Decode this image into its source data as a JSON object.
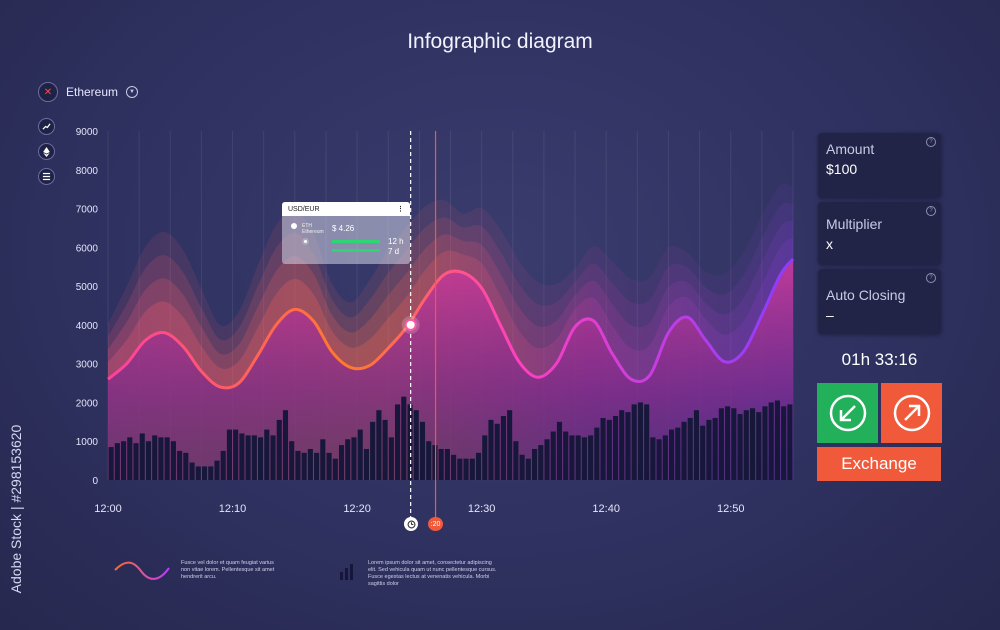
{
  "title": "Infographic diagram",
  "asset": {
    "name": "Ethereum",
    "close_icon": "close-x-icon",
    "dropdown_icon": "chevron-down-icon"
  },
  "side_icons": [
    "trend-line-icon",
    "ethereum-icon",
    "list-icon"
  ],
  "tooltip": {
    "pair": "USD/EUR",
    "menu_icon": "vertical-dots-icon",
    "coin": "ETH",
    "coin_name": "Ethereum",
    "price": "$ 4.26",
    "period1": "12 h",
    "period2": "7 d"
  },
  "markers": {
    "current_icon": "clock-icon",
    "red_label": ":20"
  },
  "panels": {
    "amount": {
      "label": "Amount",
      "value": "$100"
    },
    "multiplier": {
      "label": "Multiplier",
      "value": "x"
    },
    "auto_closing": {
      "label": "Auto Closing",
      "value": "–"
    }
  },
  "timer": "01h 33:16",
  "buttons": {
    "down_icon": "arrow-down-left-icon",
    "up_icon": "arrow-up-right-icon",
    "exchange": "Exchange"
  },
  "legend": {
    "line_text": "Fusce vel dolor et quam feugiat varius non vitae lorem. Pellentesque sit amet hendrerit arcu.",
    "bar_text": "Lorem ipsum dolor sit amet, consectetur adipiscing elit. Sed vehicula quam ut nunc pellentesque cursus. Fusce egestas lectus at venenatis vehicula. Morbi sagittis dolor"
  },
  "watermark": "Adobe Stock | #298153620",
  "colors": {
    "down_button": "#22b15a",
    "up_button": "#f05a3b",
    "exchange_button": "#f05a3b",
    "line_start": "#ff6a2a",
    "line_end": "#8a3cff"
  },
  "chart_data": {
    "type": "line",
    "ylim": [
      0,
      9000
    ],
    "yticks": [
      0,
      1000,
      2000,
      3000,
      4000,
      5000,
      6000,
      7000,
      8000,
      9000
    ],
    "xlim": [
      0,
      55
    ],
    "xtick_labels": [
      "12:00",
      "12:10",
      "12:20",
      "12:30",
      "12:40",
      "12:50"
    ],
    "xtick_values": [
      0,
      10,
      20,
      30,
      40,
      50
    ],
    "grid": true,
    "line": {
      "x": [
        0,
        1.5,
        3,
        4.5,
        6,
        7.5,
        9,
        10.5,
        12,
        13.5,
        15,
        16.5,
        18,
        19.5,
        21,
        22.5,
        24,
        25.5,
        27,
        28.5,
        30,
        31.5,
        33,
        34.5,
        36,
        37.5,
        39,
        40.5,
        42,
        43.5,
        45,
        46.5,
        48,
        49.5,
        51,
        52.5,
        54,
        55
      ],
      "y": [
        2600,
        3000,
        3600,
        3800,
        3450,
        2800,
        2400,
        2500,
        3200,
        4000,
        4400,
        4100,
        3300,
        2900,
        2950,
        3400,
        3950,
        4700,
        5300,
        5350,
        4950,
        4000,
        3050,
        2650,
        3000,
        3950,
        4100,
        3250,
        2600,
        2700,
        3800,
        4200,
        3600,
        3050,
        3300,
        4250,
        5300,
        5700
      ]
    },
    "bars": {
      "x": [
        0.25,
        0.75,
        1.25,
        1.75,
        2.25,
        2.75,
        3.25,
        3.75,
        4.25,
        4.75,
        5.25,
        5.75,
        6.25,
        6.75,
        7.25,
        7.75,
        8.25,
        8.75,
        9.25,
        9.75,
        10.25,
        10.75,
        11.25,
        11.75,
        12.25,
        12.75,
        13.25,
        13.75,
        14.25,
        14.75,
        15.25,
        15.75,
        16.25,
        16.75,
        17.25,
        17.75,
        18.25,
        18.75,
        19.25,
        19.75,
        20.25,
        20.75,
        21.25,
        21.75,
        22.25,
        22.75,
        23.25,
        23.75,
        24.25,
        24.75,
        25.25,
        25.75,
        26.25,
        26.75,
        27.25,
        27.75,
        28.25,
        28.75,
        29.25,
        29.75,
        30.25,
        30.75,
        31.25,
        31.75,
        32.25,
        32.75,
        33.25,
        33.75,
        34.25,
        34.75,
        35.25,
        35.75,
        36.25,
        36.75,
        37.25,
        37.75,
        38.25,
        38.75,
        39.25,
        39.75,
        40.25,
        40.75,
        41.25,
        41.75,
        42.25,
        42.75,
        43.25,
        43.75,
        44.25,
        44.75,
        45.25,
        45.75,
        46.25,
        46.75,
        47.25,
        47.75,
        48.25,
        48.75,
        49.25,
        49.75,
        50.25,
        50.75,
        51.25,
        51.75,
        52.25,
        52.75,
        53.25,
        53.75,
        54.25,
        54.75
      ],
      "y": [
        850,
        950,
        1000,
        1100,
        950,
        1200,
        1000,
        1150,
        1100,
        1100,
        1000,
        750,
        700,
        450,
        350,
        350,
        350,
        500,
        750,
        1300,
        1300,
        1200,
        1150,
        1150,
        1100,
        1300,
        1150,
        1550,
        1800,
        1000,
        750,
        700,
        800,
        700,
        1050,
        700,
        550,
        900,
        1050,
        1100,
        1300,
        800,
        1500,
        1800,
        1550,
        1100,
        1950,
        2150,
        1950,
        1800,
        1500,
        1000,
        900,
        800,
        800,
        650,
        550,
        550,
        550,
        700,
        1150,
        1550,
        1450,
        1650,
        1800,
        1000,
        650,
        550,
        800,
        900,
        1050,
        1250,
        1500,
        1250,
        1150,
        1150,
        1100,
        1150,
        1350,
        1600,
        1550,
        1650,
        1800,
        1750,
        1950,
        2000,
        1950,
        1100,
        1050,
        1150,
        1300,
        1350,
        1500,
        1600,
        1800,
        1400,
        1550,
        1600,
        1850,
        1900,
        1850,
        1700,
        1800,
        1850,
        1750,
        1900,
        2000,
        2050,
        1900,
        1950
      ]
    },
    "cursor_x": 24.3,
    "cursor_y": 4000,
    "marker_x": 26.3
  }
}
